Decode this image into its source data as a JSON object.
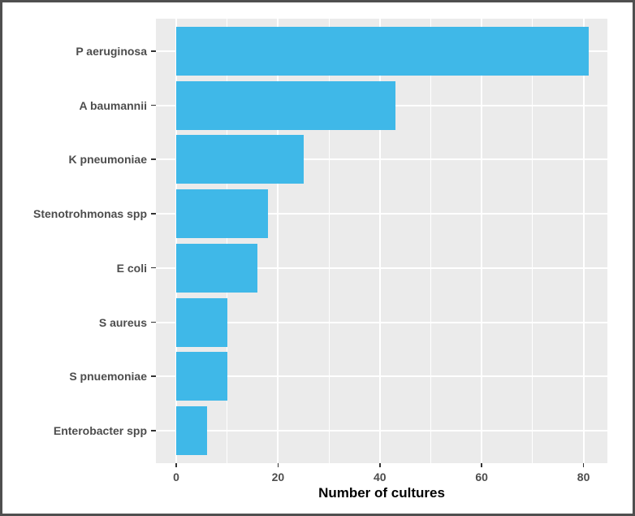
{
  "chart_data": {
    "type": "bar",
    "orientation": "horizontal",
    "title": "",
    "xlabel": "Number of cultures",
    "ylabel": "",
    "categories": [
      "P aeruginosa",
      "A baumannii",
      "K pneumoniae",
      "Stenotrohmonas spp",
      "E coli",
      "S aureus",
      "S pnuemoniae",
      "Enterobacter spp"
    ],
    "values": [
      81,
      43,
      25,
      18,
      16,
      10,
      10,
      6
    ],
    "x_ticks": [
      0,
      20,
      40,
      60,
      80
    ],
    "x_minor_ticks": [
      10,
      30,
      50,
      70
    ],
    "xlim": [
      -4,
      85
    ],
    "grid": "major-vertical, minor-vertical, major-horizontal",
    "legend": "none",
    "colors": {
      "bar_fill": "#3fb8e8",
      "panel_background": "#ebebeb",
      "gridline": "#ffffff",
      "axis_text": "#4d4d4d",
      "axis_title": "#000000",
      "tick_mark": "#333333",
      "figure_border": "#4f4f4f",
      "figure_background": "#ffffff"
    }
  }
}
